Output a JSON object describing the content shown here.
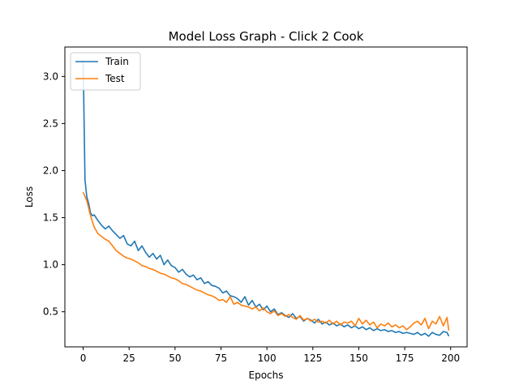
{
  "chart_data": {
    "type": "line",
    "title": "Model Loss Graph - Click 2 Cook",
    "xlabel": "Epochs",
    "ylabel": "Loss",
    "xlim": [
      -9.95,
      208.95
    ],
    "ylim": [
      0.127,
      3.313
    ],
    "xticks": [
      0,
      25,
      50,
      75,
      100,
      125,
      150,
      175,
      200
    ],
    "yticks": [
      0.5,
      1.0,
      1.5,
      2.0,
      2.5,
      3.0
    ],
    "xtick_labels": [
      "0",
      "25",
      "50",
      "75",
      "100",
      "125",
      "150",
      "175",
      "200"
    ],
    "ytick_labels": [
      "0.5",
      "1.0",
      "1.5",
      "2.0",
      "2.5",
      "3.0"
    ],
    "grid": false,
    "legend_position": "top-left",
    "series": [
      {
        "name": "Train",
        "color": "#1f77b4",
        "x": [
          0,
          1,
          2,
          3,
          4,
          5,
          6,
          7,
          8,
          10,
          12,
          14,
          16,
          18,
          20,
          22,
          24,
          26,
          28,
          30,
          32,
          34,
          36,
          38,
          40,
          42,
          44,
          46,
          48,
          50,
          52,
          54,
          56,
          58,
          60,
          62,
          64,
          66,
          68,
          70,
          72,
          74,
          76,
          78,
          80,
          82,
          84,
          86,
          88,
          90,
          92,
          94,
          96,
          98,
          100,
          102,
          104,
          106,
          108,
          110,
          112,
          114,
          116,
          118,
          120,
          122,
          124,
          126,
          128,
          130,
          132,
          134,
          136,
          138,
          140,
          142,
          144,
          146,
          148,
          150,
          152,
          154,
          156,
          158,
          160,
          162,
          164,
          166,
          168,
          170,
          172,
          174,
          176,
          178,
          180,
          182,
          184,
          186,
          188,
          190,
          192,
          194,
          196,
          198,
          199
        ],
        "y": [
          3.17,
          1.9,
          1.72,
          1.65,
          1.55,
          1.52,
          1.53,
          1.5,
          1.47,
          1.42,
          1.38,
          1.41,
          1.36,
          1.32,
          1.28,
          1.31,
          1.22,
          1.2,
          1.25,
          1.15,
          1.2,
          1.13,
          1.08,
          1.12,
          1.06,
          1.1,
          1.0,
          1.05,
          0.99,
          0.97,
          0.92,
          0.95,
          0.9,
          0.87,
          0.89,
          0.84,
          0.86,
          0.8,
          0.82,
          0.78,
          0.77,
          0.75,
          0.7,
          0.72,
          0.67,
          0.66,
          0.64,
          0.6,
          0.66,
          0.57,
          0.62,
          0.55,
          0.58,
          0.52,
          0.56,
          0.5,
          0.53,
          0.47,
          0.49,
          0.46,
          0.44,
          0.48,
          0.43,
          0.45,
          0.4,
          0.43,
          0.41,
          0.38,
          0.42,
          0.37,
          0.39,
          0.36,
          0.38,
          0.35,
          0.37,
          0.34,
          0.36,
          0.33,
          0.35,
          0.32,
          0.34,
          0.31,
          0.33,
          0.3,
          0.32,
          0.3,
          0.31,
          0.29,
          0.3,
          0.28,
          0.29,
          0.27,
          0.28,
          0.27,
          0.26,
          0.28,
          0.25,
          0.27,
          0.24,
          0.28,
          0.26,
          0.25,
          0.29,
          0.28,
          0.24
        ]
      },
      {
        "name": "Test",
        "color": "#ff7f0e",
        "x": [
          0,
          2,
          4,
          6,
          8,
          10,
          12,
          14,
          16,
          18,
          20,
          22,
          24,
          26,
          28,
          30,
          32,
          34,
          36,
          38,
          40,
          42,
          44,
          46,
          48,
          50,
          52,
          54,
          56,
          58,
          60,
          62,
          64,
          66,
          68,
          70,
          72,
          74,
          76,
          78,
          80,
          82,
          84,
          86,
          88,
          90,
          92,
          94,
          96,
          98,
          100,
          102,
          104,
          106,
          108,
          110,
          112,
          114,
          116,
          118,
          120,
          122,
          124,
          126,
          128,
          130,
          132,
          134,
          136,
          138,
          140,
          142,
          144,
          146,
          148,
          150,
          152,
          154,
          156,
          158,
          160,
          162,
          164,
          166,
          168,
          170,
          172,
          174,
          176,
          178,
          180,
          182,
          184,
          186,
          188,
          190,
          192,
          194,
          196,
          198,
          199
        ],
        "y": [
          1.77,
          1.68,
          1.52,
          1.4,
          1.33,
          1.3,
          1.27,
          1.25,
          1.2,
          1.15,
          1.12,
          1.09,
          1.07,
          1.06,
          1.04,
          1.02,
          0.99,
          0.98,
          0.96,
          0.95,
          0.93,
          0.91,
          0.9,
          0.88,
          0.86,
          0.85,
          0.83,
          0.8,
          0.79,
          0.77,
          0.75,
          0.73,
          0.72,
          0.7,
          0.68,
          0.67,
          0.65,
          0.62,
          0.63,
          0.6,
          0.66,
          0.58,
          0.6,
          0.57,
          0.56,
          0.55,
          0.53,
          0.55,
          0.51,
          0.54,
          0.5,
          0.48,
          0.51,
          0.46,
          0.48,
          0.45,
          0.47,
          0.44,
          0.42,
          0.46,
          0.41,
          0.43,
          0.4,
          0.42,
          0.39,
          0.4,
          0.38,
          0.41,
          0.37,
          0.4,
          0.36,
          0.39,
          0.38,
          0.4,
          0.35,
          0.43,
          0.37,
          0.41,
          0.36,
          0.39,
          0.33,
          0.37,
          0.35,
          0.38,
          0.34,
          0.36,
          0.33,
          0.35,
          0.31,
          0.34,
          0.38,
          0.4,
          0.36,
          0.43,
          0.32,
          0.4,
          0.37,
          0.45,
          0.35,
          0.44,
          0.3
        ]
      }
    ]
  }
}
